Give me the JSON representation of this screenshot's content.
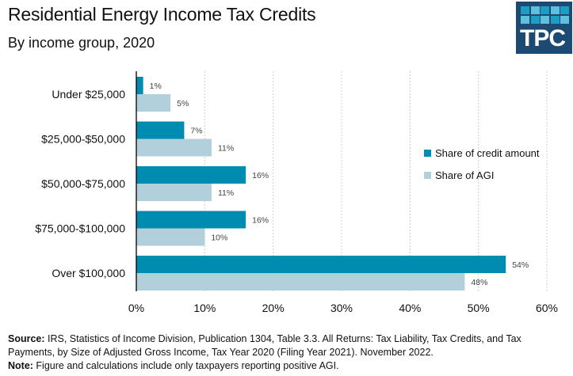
{
  "header": {
    "title": "Residential Energy Income Tax Credits",
    "subtitle": "By income group, 2020",
    "logo_text": "TPC"
  },
  "colors": {
    "credit": "#008bb0",
    "agi": "#b2d0db",
    "logo_bg": "#1d4a73",
    "logo_square_light": "#5fc0de",
    "logo_square_dark": "#1a9ec4",
    "gridline": "#cccccc",
    "axis": "#000000"
  },
  "chart_data": {
    "type": "bar",
    "orientation": "horizontal",
    "title": "Residential Energy Income Tax Credits",
    "subtitle": "By income group, 2020",
    "categories": [
      "Under $25,000",
      "$25,000-$50,000",
      "$50,000-$75,000",
      "$75,000-$100,000",
      "Over $100,000"
    ],
    "series": [
      {
        "name": "Share of credit amount",
        "values": [
          1,
          7,
          16,
          16,
          54
        ],
        "labels": [
          "1%",
          "7%",
          "16%",
          "16%",
          "54%"
        ]
      },
      {
        "name": "Share of AGI",
        "values": [
          5,
          11,
          11,
          10,
          48
        ],
        "labels": [
          "5%",
          "11%",
          "11%",
          "10%",
          "48%"
        ]
      }
    ],
    "xlim": [
      0,
      60
    ],
    "xticks": [
      0,
      10,
      20,
      30,
      40,
      50,
      60
    ],
    "xtick_labels": [
      "0%",
      "10%",
      "20%",
      "30%",
      "40%",
      "50%",
      "60%"
    ],
    "xlabel": "",
    "ylabel": "",
    "grid": "vertical dotted",
    "legend_position": "right"
  },
  "legend": {
    "items": [
      "Share of credit amount",
      "Share of AGI"
    ]
  },
  "footer": {
    "source_label": "Source:",
    "source_text": " IRS, Statistics of Income Division, Publication 1304, Table 3.3. All Returns: Tax Liability, Tax Credits, and Tax Payments, by Size of Adjusted Gross Income, Tax Year 2020 (Filing Year 2021). November 2022.",
    "note_label": "Note:",
    "note_text": " Figure and calculations include only taxpayers reporting positive AGI."
  }
}
